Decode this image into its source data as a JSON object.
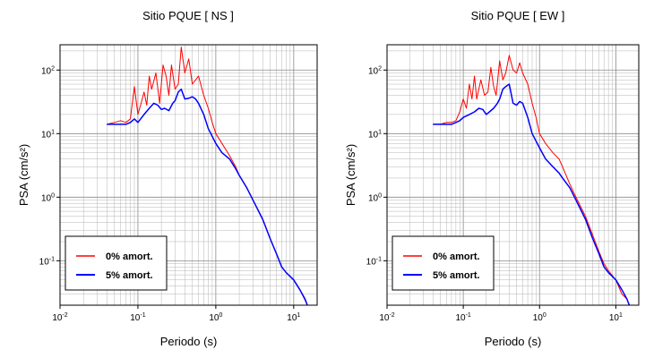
{
  "chart_data": [
    {
      "type": "line",
      "title": "Sitio PQUE [ NS ]",
      "xlabel": "Periodo (s)",
      "ylabel": "PSA (cm/s²)",
      "xscale": "log",
      "yscale": "log",
      "xlim": [
        0.01,
        20
      ],
      "ylim": [
        0.02,
        250
      ],
      "x_tick_labels": [
        "10⁻²",
        "10⁻¹",
        "10⁰",
        "10¹"
      ],
      "y_tick_labels": [
        "10⁻¹",
        "10⁰",
        "10¹",
        "10²"
      ],
      "grid": true,
      "legend_position": "bottom-left",
      "series": [
        {
          "name": "0% amort.",
          "color": "#ff0000",
          "x": [
            0.04,
            0.05,
            0.06,
            0.07,
            0.08,
            0.09,
            0.1,
            0.11,
            0.12,
            0.13,
            0.14,
            0.15,
            0.17,
            0.19,
            0.21,
            0.23,
            0.25,
            0.27,
            0.3,
            0.33,
            0.36,
            0.4,
            0.45,
            0.5,
            0.6,
            0.7,
            0.8,
            0.9,
            1.0,
            1.2,
            1.5,
            1.8,
            2.0,
            2.5,
            3,
            4,
            5,
            6,
            7,
            8,
            10,
            12,
            14,
            15
          ],
          "y": [
            14,
            15,
            16,
            15,
            17,
            55,
            20,
            30,
            45,
            28,
            80,
            50,
            90,
            30,
            120,
            80,
            40,
            120,
            50,
            60,
            230,
            90,
            150,
            60,
            80,
            40,
            25,
            15,
            10,
            7,
            4.5,
            3,
            2.2,
            1.4,
            0.9,
            0.45,
            0.22,
            0.13,
            0.08,
            0.065,
            0.05,
            0.035,
            0.024,
            0.02
          ]
        },
        {
          "name": "5% amort.",
          "color": "#0000ff",
          "x": [
            0.04,
            0.05,
            0.06,
            0.07,
            0.08,
            0.09,
            0.1,
            0.12,
            0.14,
            0.16,
            0.18,
            0.2,
            0.22,
            0.25,
            0.28,
            0.3,
            0.33,
            0.36,
            0.4,
            0.45,
            0.5,
            0.55,
            0.6,
            0.7,
            0.8,
            1.0,
            1.2,
            1.5,
            1.8,
            2.0,
            2.5,
            3,
            4,
            5,
            6,
            7,
            8,
            10,
            12,
            14,
            15
          ],
          "y": [
            14,
            14,
            14,
            14,
            15,
            17,
            15,
            20,
            25,
            30,
            28,
            24,
            25,
            23,
            30,
            33,
            45,
            50,
            35,
            36,
            38,
            35,
            30,
            20,
            12,
            7,
            5,
            4,
            2.8,
            2.2,
            1.4,
            0.9,
            0.45,
            0.22,
            0.13,
            0.08,
            0.065,
            0.05,
            0.035,
            0.025,
            0.02
          ]
        }
      ]
    },
    {
      "type": "line",
      "title": "Sitio PQUE [ EW ]",
      "xlabel": "Periodo (s)",
      "ylabel": "PSA (cm/s²)",
      "xscale": "log",
      "yscale": "log",
      "xlim": [
        0.01,
        20
      ],
      "ylim": [
        0.02,
        250
      ],
      "x_tick_labels": [
        "10⁻²",
        "10⁻¹",
        "10⁰",
        "10¹"
      ],
      "y_tick_labels": [
        "10⁻¹",
        "10⁰",
        "10¹",
        "10²"
      ],
      "grid": true,
      "legend_position": "bottom-left",
      "series": [
        {
          "name": "0% amort.",
          "color": "#ff0000",
          "x": [
            0.04,
            0.05,
            0.06,
            0.07,
            0.08,
            0.09,
            0.1,
            0.11,
            0.12,
            0.13,
            0.14,
            0.15,
            0.17,
            0.19,
            0.21,
            0.23,
            0.25,
            0.27,
            0.3,
            0.33,
            0.36,
            0.4,
            0.45,
            0.5,
            0.55,
            0.6,
            0.7,
            0.8,
            0.9,
            1.0,
            1.2,
            1.5,
            1.8,
            2.0,
            2.5,
            3,
            4,
            5,
            6,
            7,
            8,
            10,
            12,
            14,
            15
          ],
          "y": [
            14,
            14,
            15,
            15,
            16,
            22,
            35,
            25,
            60,
            35,
            80,
            35,
            70,
            40,
            45,
            110,
            55,
            40,
            140,
            70,
            90,
            170,
            100,
            90,
            130,
            90,
            60,
            30,
            18,
            10,
            7,
            5,
            4,
            3,
            1.6,
            1.0,
            0.5,
            0.25,
            0.14,
            0.09,
            0.07,
            0.05,
            0.03,
            0.025,
            0.02
          ]
        },
        {
          "name": "5% amort.",
          "color": "#0000ff",
          "x": [
            0.04,
            0.05,
            0.06,
            0.07,
            0.08,
            0.09,
            0.1,
            0.12,
            0.14,
            0.16,
            0.18,
            0.2,
            0.22,
            0.25,
            0.28,
            0.3,
            0.33,
            0.36,
            0.4,
            0.45,
            0.5,
            0.55,
            0.6,
            0.7,
            0.8,
            1.0,
            1.2,
            1.5,
            1.8,
            2.0,
            2.5,
            3,
            4,
            5,
            6,
            7,
            8,
            10,
            12,
            14,
            15
          ],
          "y": [
            14,
            14,
            14,
            14,
            15,
            16,
            18,
            20,
            22,
            25,
            24,
            20,
            22,
            25,
            30,
            35,
            50,
            55,
            60,
            30,
            28,
            32,
            30,
            18,
            10,
            6,
            4,
            3,
            2.4,
            2.0,
            1.4,
            0.9,
            0.45,
            0.22,
            0.13,
            0.08,
            0.065,
            0.05,
            0.035,
            0.025,
            0.02
          ]
        }
      ]
    }
  ]
}
